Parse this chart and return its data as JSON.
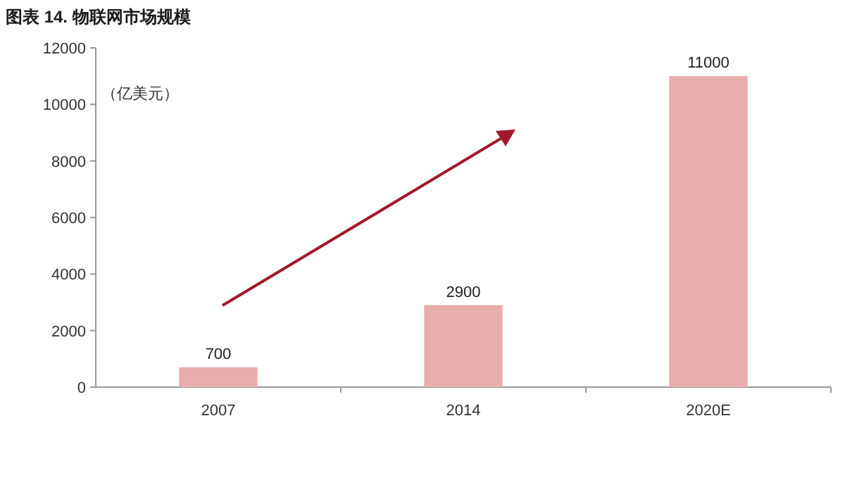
{
  "chart_data": {
    "type": "bar",
    "title": "图表 14. 物联网市场规模",
    "ylabel": "（亿美元）",
    "categories": [
      "2007",
      "2014",
      "2020E"
    ],
    "values": [
      700,
      2900,
      11000
    ],
    "color": "#e8adad",
    "ylim": [
      0,
      12000
    ],
    "yticks": [
      0,
      2000,
      4000,
      6000,
      8000,
      10000,
      12000
    ],
    "data_labels": true
  }
}
